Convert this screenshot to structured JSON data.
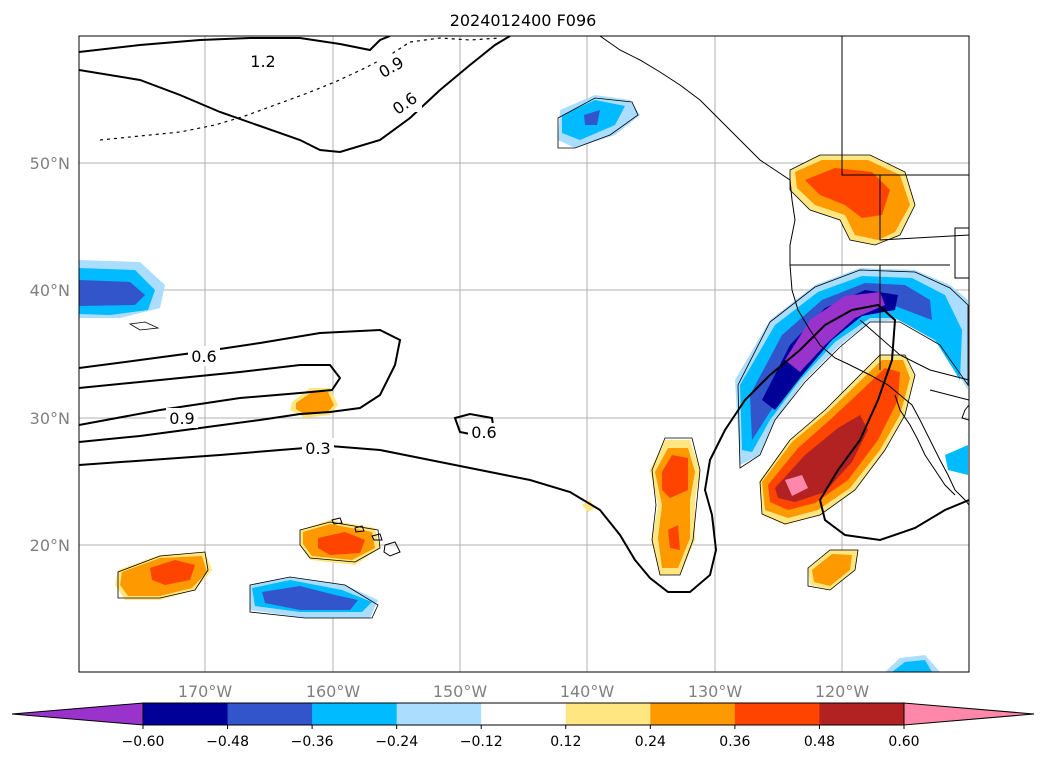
{
  "title": "2024012400 F096",
  "lat_labels": [
    "50°N",
    "40°N",
    "30°N",
    "20°N"
  ],
  "lon_labels": [
    "170°W",
    "160°W",
    "150°W",
    "140°W",
    "130°W",
    "120°W"
  ],
  "contour_labels": [
    "1.2",
    "0.9",
    "0.6",
    "0.6",
    "0.9",
    "0.3",
    "0.6"
  ],
  "colorbar": {
    "tick_labels": [
      "−0.60",
      "−0.48",
      "−0.36",
      "−0.24",
      "−0.12",
      "0.12",
      "0.24",
      "0.36",
      "0.48",
      "0.60"
    ],
    "colors": [
      "#9933cc",
      "#000099",
      "#3355cc",
      "#00bbff",
      "#aaddff",
      "#ffffff",
      "#ffe680",
      "#ff9900",
      "#ff4400",
      "#b22222",
      "#ff88aa"
    ]
  }
}
